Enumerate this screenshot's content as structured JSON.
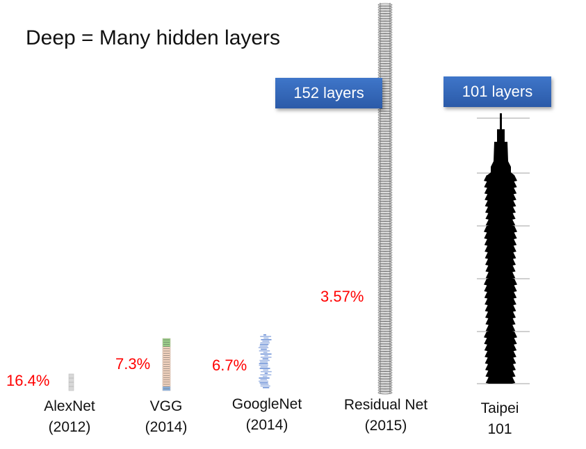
{
  "title": "Deep = Many hidden layers",
  "networks": [
    {
      "name": "AlexNet",
      "year": "(2012)",
      "error": "16.4%"
    },
    {
      "name": "VGG",
      "year": "(2014)",
      "error": "7.3%"
    },
    {
      "name": "GoogleNet",
      "year": "(2014)",
      "error": "6.7%"
    },
    {
      "name": "Residual Net",
      "year": "(2015)",
      "error": "3.57%",
      "callout": "152 layers"
    },
    {
      "name": "Taipei",
      "year": "101",
      "callout": "101 layers"
    }
  ]
}
